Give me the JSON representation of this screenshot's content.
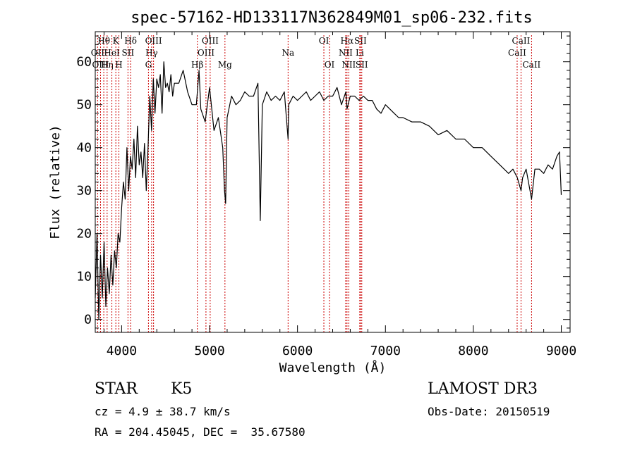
{
  "chart_data": {
    "type": "line",
    "title": "spec-57162-HD133117N362849M01_sp06-232.fits",
    "xlabel": "Wavelength (Å)",
    "ylabel": "Flux (relative)",
    "xlim": [
      3700,
      9100
    ],
    "ylim": [
      -3,
      67
    ],
    "xticks": [
      4000,
      5000,
      6000,
      7000,
      8000,
      9000
    ],
    "yticks": [
      0,
      10,
      20,
      30,
      40,
      50,
      60
    ],
    "grid": false,
    "series": [
      {
        "color": "#000000",
        "x": [
          3700,
          3720,
          3740,
          3760,
          3780,
          3800,
          3820,
          3840,
          3860,
          3880,
          3900,
          3920,
          3940,
          3960,
          3980,
          4000,
          4020,
          4040,
          4060,
          4080,
          4100,
          4120,
          4140,
          4160,
          4180,
          4200,
          4220,
          4240,
          4260,
          4280,
          4300,
          4320,
          4340,
          4360,
          4380,
          4400,
          4420,
          4440,
          4460,
          4480,
          4500,
          4520,
          4540,
          4560,
          4580,
          4600,
          4650,
          4700,
          4750,
          4800,
          4850,
          4880,
          4900,
          4950,
          5000,
          5050,
          5100,
          5150,
          5170,
          5183,
          5200,
          5250,
          5300,
          5350,
          5400,
          5450,
          5500,
          5550,
          5577,
          5600,
          5650,
          5700,
          5750,
          5800,
          5850,
          5893,
          5900,
          5950,
          6000,
          6050,
          6100,
          6150,
          6200,
          6250,
          6300,
          6350,
          6400,
          6450,
          6500,
          6550,
          6563,
          6600,
          6650,
          6700,
          6750,
          6800,
          6850,
          6900,
          6950,
          7000,
          7050,
          7100,
          7150,
          7200,
          7300,
          7400,
          7500,
          7600,
          7700,
          7800,
          7900,
          8000,
          8100,
          8200,
          8300,
          8400,
          8450,
          8500,
          8542,
          8560,
          8600,
          8662,
          8700,
          8750,
          8800,
          8850,
          8900,
          8950,
          8980,
          9000
        ],
        "y": [
          5,
          20,
          0,
          15,
          5,
          18,
          3,
          12,
          6,
          15,
          8,
          16,
          12,
          20,
          18,
          26,
          32,
          28,
          40,
          30,
          38,
          35,
          42,
          33,
          45,
          36,
          39,
          33,
          41,
          30,
          40,
          52,
          44,
          56,
          48,
          56,
          54,
          57,
          48,
          60,
          54,
          55,
          53,
          57,
          52,
          55,
          55,
          58,
          53,
          50,
          50,
          58,
          49,
          46,
          54,
          44,
          47,
          40,
          30,
          27,
          47,
          52,
          50,
          51,
          53,
          52,
          52,
          55,
          23,
          50,
          53,
          51,
          52,
          51,
          53,
          42,
          50,
          52,
          51,
          52,
          53,
          51,
          52,
          53,
          51,
          52,
          52,
          54,
          50,
          53,
          49,
          52,
          52,
          51,
          52,
          51,
          51,
          49,
          48,
          50,
          49,
          48,
          47,
          47,
          46,
          46,
          45,
          43,
          44,
          42,
          42,
          40,
          40,
          38,
          36,
          34,
          35,
          33,
          30,
          33,
          35,
          28,
          35,
          35,
          34,
          36,
          35,
          38,
          39,
          29
        ]
      }
    ],
    "line_markers": [
      {
        "name": "Hθ",
        "wave": 3797,
        "row": 0
      },
      {
        "name": "OII",
        "wave": 3727,
        "row": 1
      },
      {
        "name": "OIII",
        "wave": 3760,
        "row": 2
      },
      {
        "name": "Hη",
        "wave": 3835,
        "row": 2
      },
      {
        "name": "K",
        "wave": 3934,
        "row": 0
      },
      {
        "name": "HeI",
        "wave": 3889,
        "row": 1
      },
      {
        "name": "SII",
        "wave": 4072,
        "row": 1
      },
      {
        "name": "H",
        "wave": 3969,
        "row": 2
      },
      {
        "name": "Hδ",
        "wave": 4102,
        "row": 0
      },
      {
        "name": "OIII",
        "wave": 4363,
        "row": 0
      },
      {
        "name": "Hγ",
        "wave": 4341,
        "row": 1
      },
      {
        "name": "G",
        "wave": 4305,
        "row": 2
      },
      {
        "name": "OIII",
        "wave": 5007,
        "row": 0
      },
      {
        "name": "OIII",
        "wave": 4959,
        "row": 1
      },
      {
        "name": "Hβ",
        "wave": 4861,
        "row": 2
      },
      {
        "name": "Mg",
        "wave": 5175,
        "row": 2
      },
      {
        "name": "Na",
        "wave": 5893,
        "row": 1
      },
      {
        "name": "OI",
        "wave": 6300,
        "row": 0
      },
      {
        "name": "OI",
        "wave": 6364,
        "row": 2
      },
      {
        "name": "Hα",
        "wave": 6563,
        "row": 0
      },
      {
        "name": "SII",
        "wave": 6716,
        "row": 0
      },
      {
        "name": "NII",
        "wave": 6548,
        "row": 1
      },
      {
        "name": "Li",
        "wave": 6708,
        "row": 1
      },
      {
        "name": "NII",
        "wave": 6583,
        "row": 2
      },
      {
        "name": "SII",
        "wave": 6731,
        "row": 2
      },
      {
        "name": "CaII",
        "wave": 8542,
        "row": 0
      },
      {
        "name": "CaII",
        "wave": 8498,
        "row": 1
      },
      {
        "name": "CaII",
        "wave": 8662,
        "row": 2
      }
    ],
    "marker_color": "#cc0000"
  },
  "info": {
    "class": "STAR",
    "subclass": "K5",
    "survey": "LAMOST DR3",
    "redshift": "cz = 4.9 ± 38.7 km/s",
    "obs_date": "Obs-Date: 20150519",
    "coords": "RA = 204.45045, DEC =  35.67580"
  }
}
